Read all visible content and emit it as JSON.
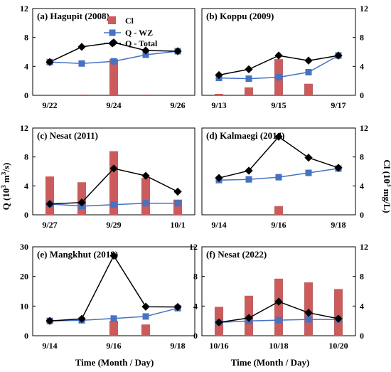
{
  "axes": {
    "xlabel": "Time (Month / Day)",
    "ylabel_left": "Q (10",
    "ylabel_left_sup": "3",
    "ylabel_left_end": " m",
    "ylabel_left_sup2": "3",
    "ylabel_left_tail": "/s)",
    "ylabel_right": "Cl (10",
    "ylabel_right_sup": "3",
    "ylabel_right_tail": " mg/L)"
  },
  "legend": {
    "cl": "Cl",
    "qwz": "Q - WZ",
    "qtotal": "Q - Total"
  },
  "colors": {
    "cl": "#cd5b5b",
    "qwz": "#4472c4",
    "qtotal": "#000000"
  },
  "chart_data": [
    {
      "type": "bar+line",
      "title": "(a) Hagupit (2008)",
      "x_ticks": [
        "9/22",
        "9/24",
        "9/26"
      ],
      "x_tick_positions": [
        0,
        2,
        4
      ],
      "ylim_left": [
        0,
        12
      ],
      "yticks_left": [
        0,
        4,
        8,
        12
      ],
      "ylim_right": [
        0,
        12
      ],
      "yticks_right": [],
      "cl": [
        [
          1,
          0.1
        ],
        [
          2,
          5.0
        ],
        [
          3,
          0.1
        ]
      ],
      "q_wz": [
        [
          0,
          4.6
        ],
        [
          1,
          4.4
        ],
        [
          2,
          4.7
        ],
        [
          3,
          5.6
        ],
        [
          4,
          6.1
        ]
      ],
      "q_total": [
        [
          0,
          4.6
        ],
        [
          1,
          6.7
        ],
        [
          2,
          7.3
        ],
        [
          3,
          6.2
        ],
        [
          4,
          6.1
        ]
      ]
    },
    {
      "type": "bar+line",
      "title": "(b) Koppu (2009)",
      "x_ticks": [
        "9/13",
        "9/15",
        "9/17"
      ],
      "x_tick_positions": [
        0,
        2,
        4
      ],
      "ylim_left": [
        0,
        12
      ],
      "yticks_left": [],
      "ylim_right": [
        0,
        12
      ],
      "yticks_right": [
        0,
        4,
        8,
        12
      ],
      "cl": [
        [
          0,
          0.2
        ],
        [
          1,
          1.1
        ],
        [
          2,
          5.0
        ],
        [
          3,
          1.6
        ]
      ],
      "q_wz": [
        [
          0,
          2.4
        ],
        [
          1,
          2.3
        ],
        [
          2,
          2.5
        ],
        [
          3,
          3.2
        ],
        [
          4,
          5.5
        ]
      ],
      "q_total": [
        [
          0,
          2.8
        ],
        [
          1,
          3.6
        ],
        [
          2,
          5.5
        ],
        [
          3,
          4.8
        ],
        [
          4,
          5.5
        ]
      ]
    },
    {
      "type": "bar+line",
      "title": "(c) Nesat (2011)",
      "x_ticks": [
        "9/27",
        "9/29",
        "10/1"
      ],
      "x_tick_positions": [
        0,
        2,
        4
      ],
      "ylim_left": [
        0,
        12
      ],
      "yticks_left": [
        0,
        4,
        8,
        12
      ],
      "ylim_right": [
        0,
        12
      ],
      "yticks_right": [],
      "cl": [
        [
          0,
          5.3
        ],
        [
          1,
          4.5
        ],
        [
          2,
          8.8
        ],
        [
          3,
          5.1
        ],
        [
          4,
          2.1
        ]
      ],
      "q_wz": [
        [
          0,
          1.5
        ],
        [
          1,
          1.2
        ],
        [
          2,
          1.4
        ],
        [
          3,
          1.6
        ],
        [
          4,
          1.6
        ]
      ],
      "q_total": [
        [
          0,
          1.5
        ],
        [
          1,
          1.7
        ],
        [
          2,
          6.4
        ],
        [
          3,
          5.4
        ],
        [
          4,
          3.2
        ]
      ]
    },
    {
      "type": "bar+line",
      "title": "(d) Kalmaegi (2014)",
      "x_ticks": [
        "9/14",
        "9/16",
        "9/18"
      ],
      "x_tick_positions": [
        0,
        2,
        4
      ],
      "ylim_left": [
        0,
        12
      ],
      "yticks_left": [],
      "ylim_right": [
        0,
        12
      ],
      "yticks_right": [
        0,
        4,
        8,
        12
      ],
      "cl": [
        [
          2,
          1.2
        ]
      ],
      "q_wz": [
        [
          0,
          4.8
        ],
        [
          1,
          4.9
        ],
        [
          2,
          5.2
        ],
        [
          3,
          5.8
        ],
        [
          4,
          6.4
        ]
      ],
      "q_total": [
        [
          0,
          5.1
        ],
        [
          1,
          6.1
        ],
        [
          2,
          10.8
        ],
        [
          3,
          7.9
        ],
        [
          4,
          6.5
        ]
      ]
    },
    {
      "type": "bar+line",
      "title": "(e) Mangkhut (2018)",
      "x_ticks": [
        "9/14",
        "9/16",
        "9/18"
      ],
      "x_tick_positions": [
        0,
        2,
        4
      ],
      "ylim_left": [
        0,
        30
      ],
      "yticks_left": [
        0,
        10,
        20,
        30
      ],
      "ylim_right": [
        0,
        30
      ],
      "yticks_right": [],
      "cl": [
        [
          2,
          5.0
        ],
        [
          3,
          3.8
        ]
      ],
      "q_wz": [
        [
          0,
          5.0
        ],
        [
          1,
          5.2
        ],
        [
          2,
          5.8
        ],
        [
          3,
          6.5
        ],
        [
          4,
          9.3
        ]
      ],
      "q_total": [
        [
          0,
          5.0
        ],
        [
          1,
          5.7
        ],
        [
          2,
          27.0
        ],
        [
          3,
          9.8
        ],
        [
          4,
          9.7
        ]
      ]
    },
    {
      "type": "bar+line",
      "title": "(f) Nesat (2022)",
      "x_ticks": [
        "10/16",
        "10/18",
        "10/20"
      ],
      "x_tick_positions": [
        0,
        2,
        4
      ],
      "ylim_left": [
        0,
        12
      ],
      "yticks_left": [
        0,
        4,
        8,
        12
      ],
      "ylim_right": [
        0,
        12
      ],
      "yticks_right": [
        0,
        4,
        8,
        12
      ],
      "cl": [
        [
          0,
          3.9
        ],
        [
          1,
          5.4
        ],
        [
          2,
          7.7
        ],
        [
          3,
          7.2
        ],
        [
          4,
          6.3
        ]
      ],
      "q_wz": [
        [
          0,
          1.8
        ],
        [
          1,
          2.0
        ],
        [
          2,
          2.1
        ],
        [
          3,
          2.2
        ],
        [
          4,
          2.2
        ]
      ],
      "q_total": [
        [
          0,
          1.8
        ],
        [
          1,
          2.4
        ],
        [
          2,
          4.6
        ],
        [
          3,
          3.1
        ],
        [
          4,
          2.3
        ]
      ]
    }
  ]
}
